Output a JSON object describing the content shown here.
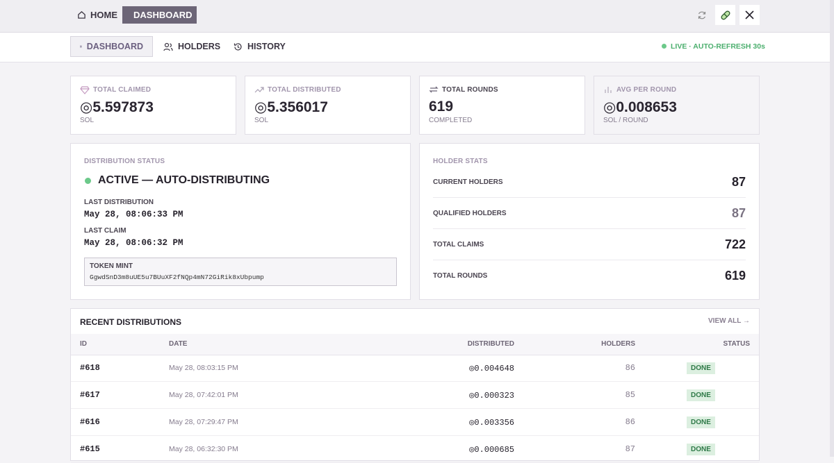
{
  "nav": {
    "items": [
      "HOME",
      "DASHBOARD"
    ]
  },
  "tabs": {
    "items": [
      "DASHBOARD",
      "HOLDERS",
      "HISTORY"
    ],
    "status": "LIVE · AUTO-REFRESH 30s"
  },
  "stats": [
    {
      "label": "TOTAL CLAIMED",
      "value": "◎5.597873",
      "unit": "SOL"
    },
    {
      "label": "TOTAL DISTRIBUTED",
      "value": "◎5.356017",
      "unit": "SOL"
    },
    {
      "label": "TOTAL ROUNDS",
      "value": 619,
      "unit": "COMPLETED"
    },
    {
      "label": "AVG PER ROUND",
      "value": "◎0.008653",
      "unit": "SOL / ROUND"
    }
  ],
  "distribution": {
    "title": "DISTRIBUTION STATUS",
    "state": "ACTIVE — AUTO-DISTRIBUTING",
    "last_distribution_label": "LAST DISTRIBUTION",
    "last_distribution": "May 28, 08:06:33 PM",
    "last_claim_label": "LAST CLAIM",
    "last_claim": "May 28, 08:06:32 PM",
    "mint_label": "TOKEN MINT",
    "mint": "GgwdSnD3m8uUE5u7BUuXF2fNQp4mN72GiRik8xUbpump"
  },
  "holder_stats": {
    "title": "HOLDER STATS",
    "rows": [
      [
        "CURRENT HOLDERS",
        87
      ],
      [
        "QUALIFIED HOLDERS",
        87
      ],
      [
        "TOTAL CLAIMS",
        722
      ],
      [
        "TOTAL ROUNDS",
        619
      ]
    ]
  },
  "recent": {
    "title": "RECENT DISTRIBUTIONS",
    "link": "VIEW ALL →",
    "columns": [
      "ID",
      "DATE",
      "DISTRIBUTED",
      "HOLDERS",
      "STATUS"
    ],
    "rows": [
      [
        "#618",
        "May 28, 08:03:15 PM",
        "◎0.004648",
        86,
        "DONE"
      ],
      [
        "#617",
        "May 28, 07:42:01 PM",
        "◎0.000323",
        85,
        "DONE"
      ],
      [
        "#616",
        "May 28, 07:29:47 PM",
        "◎0.003356",
        86,
        "DONE"
      ],
      [
        "#615",
        "May 28, 06:32:30 PM",
        "◎0.000685",
        87,
        "DONE"
      ]
    ]
  }
}
